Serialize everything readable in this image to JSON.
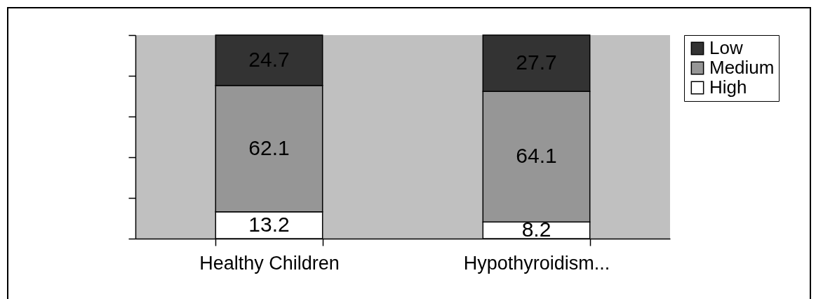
{
  "chart_data": {
    "type": "bar",
    "stacked": true,
    "categories": [
      "Healthy Children",
      "Hypothyroidism..."
    ],
    "series": [
      {
        "name": "High",
        "color": "#ffffff",
        "values": [
          13.2,
          8.2
        ]
      },
      {
        "name": "Medium",
        "color": "#969696",
        "values": [
          62.1,
          64.1
        ]
      },
      {
        "name": "Low",
        "color": "#333333",
        "values": [
          24.7,
          27.7
        ]
      }
    ],
    "ylim": [
      0,
      100
    ],
    "yticks": [
      {
        "value": 0,
        "label": null
      },
      {
        "value": 20,
        "label": null
      },
      {
        "value": 40,
        "label": null
      },
      {
        "value": 60,
        "label": null
      },
      {
        "value": 80,
        "label": null
      },
      {
        "value": 100,
        "label": null
      }
    ],
    "tick_labels": "x",
    "data_labels": true,
    "legend": "right",
    "grid": false
  }
}
